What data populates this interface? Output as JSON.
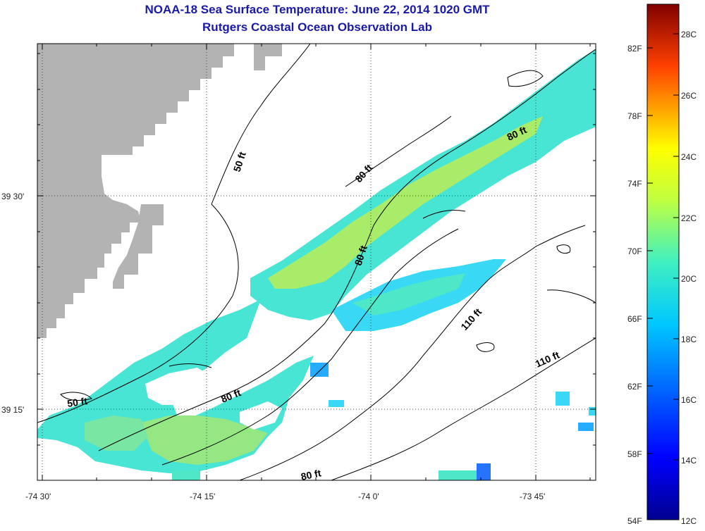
{
  "header": {
    "title": "NOAA-18 Sea Surface Temperature:  June 22, 2014 1020 GMT",
    "subtitle": "Rutgers Coastal Ocean Observation Lab"
  },
  "axes": {
    "x_ticks": [
      "-74 30'",
      "-74 15'",
      "-74 0'",
      "-73 45'"
    ],
    "y_ticks": [
      "39 30'",
      "39 15'"
    ]
  },
  "contour_labels": [
    "50 ft",
    "50 ft",
    "80 ft",
    "80 ft",
    "80 ft",
    "80 ft",
    "80 ft",
    "110 ft",
    "110 ft"
  ],
  "colorbar": {
    "fahrenheit": [
      "82F",
      "78F",
      "74F",
      "70F",
      "66F",
      "62F",
      "58F",
      "54F"
    ],
    "celsius": [
      "28C",
      "26C",
      "24C",
      "22C",
      "20C",
      "18C",
      "16C",
      "14C",
      "12C"
    ]
  },
  "colors": {
    "land": "#b3b3b3",
    "water_warm": "#a4ec63",
    "water_mid": "#45e6c6",
    "water_cool": "#2fd8f5",
    "title": "#1a1aa8"
  }
}
